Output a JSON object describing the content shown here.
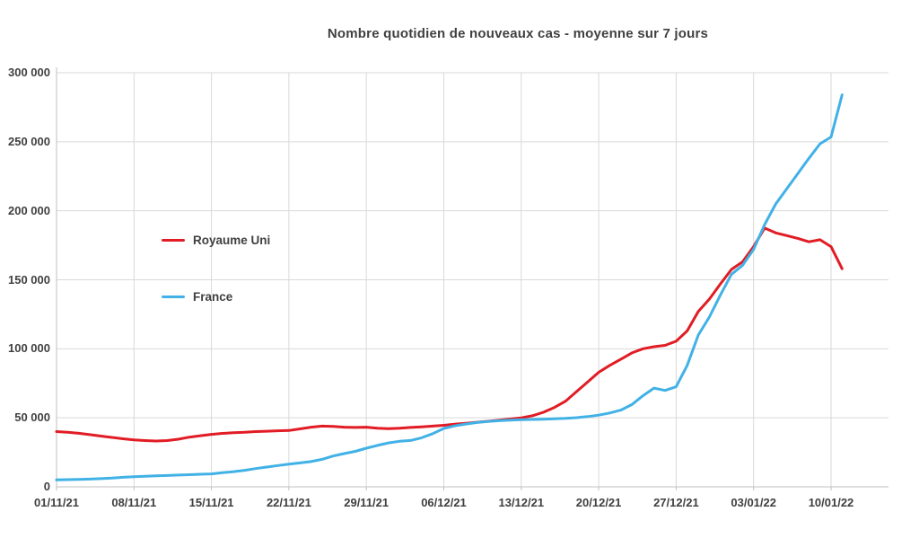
{
  "chart_data": {
    "type": "line",
    "title": "Nombre quotidien de nouveaux cas - moyenne sur 7 jours",
    "xlabel": "",
    "ylabel": "",
    "ylim": [
      0,
      300000
    ],
    "grid": true,
    "legend_position": "inside-left",
    "colors": {
      "grid": "#d9d9d9",
      "axis": "#bfbfbf",
      "text": "#404040",
      "background": "#ffffff"
    },
    "xtick_labels": [
      "01/11/21",
      "08/11/21",
      "15/11/21",
      "22/11/21",
      "29/11/21",
      "06/12/21",
      "13/12/21",
      "20/12/21",
      "27/12/21",
      "03/01/22",
      "10/01/22"
    ],
    "ytick_labels": [
      "0",
      "50 000",
      "100 000",
      "150 000",
      "200 000",
      "250 000",
      "300 000"
    ],
    "ytick_values": [
      0,
      50000,
      100000,
      150000,
      200000,
      250000,
      300000
    ],
    "x_dates": [
      "01/11/21",
      "02/11/21",
      "03/11/21",
      "04/11/21",
      "05/11/21",
      "06/11/21",
      "07/11/21",
      "08/11/21",
      "09/11/21",
      "10/11/21",
      "11/11/21",
      "12/11/21",
      "13/11/21",
      "14/11/21",
      "15/11/21",
      "16/11/21",
      "17/11/21",
      "18/11/21",
      "19/11/21",
      "20/11/21",
      "21/11/21",
      "22/11/21",
      "23/11/21",
      "24/11/21",
      "25/11/21",
      "26/11/21",
      "27/11/21",
      "28/11/21",
      "29/11/21",
      "30/11/21",
      "01/12/21",
      "02/12/21",
      "03/12/21",
      "04/12/21",
      "05/12/21",
      "06/12/21",
      "07/12/21",
      "08/12/21",
      "09/12/21",
      "10/12/21",
      "11/12/21",
      "12/12/21",
      "13/12/21",
      "14/12/21",
      "15/12/21",
      "16/12/21",
      "17/12/21",
      "18/12/21",
      "19/12/21",
      "20/12/21",
      "21/12/21",
      "22/12/21",
      "23/12/21",
      "24/12/21",
      "25/12/21",
      "26/12/21",
      "27/12/21",
      "28/12/21",
      "29/12/21",
      "30/12/21",
      "31/12/21",
      "01/01/22",
      "02/01/22",
      "03/01/22",
      "04/01/22",
      "05/01/22",
      "06/01/22",
      "07/01/22",
      "08/01/22",
      "09/01/22",
      "10/01/22",
      "11/01/22"
    ],
    "series": [
      {
        "name": "Royaume Uni",
        "color": "#e11c24",
        "values": [
          40000,
          39500,
          38800,
          37800,
          36800,
          35800,
          34800,
          34000,
          33500,
          33200,
          33500,
          34500,
          36000,
          37000,
          38000,
          38700,
          39200,
          39500,
          40000,
          40300,
          40600,
          40800,
          42000,
          43200,
          44000,
          43700,
          43200,
          43000,
          43200,
          42500,
          42200,
          42500,
          43000,
          43500,
          44000,
          44600,
          45400,
          46100,
          46800,
          47500,
          48300,
          49100,
          50000,
          51500,
          54000,
          57500,
          62000,
          69000,
          76000,
          83000,
          88000,
          92500,
          97000,
          100000,
          101500,
          102500,
          105500,
          113000,
          127000,
          136000,
          147000,
          157500,
          163000,
          174000,
          187500,
          184000,
          182000,
          180000,
          177500,
          179000,
          174000,
          158000
        ]
      },
      {
        "name": "France",
        "color": "#41b1e6",
        "values": [
          5000,
          5200,
          5400,
          5600,
          5900,
          6300,
          6900,
          7300,
          7700,
          8000,
          8200,
          8500,
          8800,
          9100,
          9400,
          10200,
          11000,
          12000,
          13200,
          14300,
          15400,
          16400,
          17300,
          18300,
          19900,
          22300,
          24100,
          25700,
          28000,
          30000,
          31800,
          33000,
          33600,
          35500,
          38500,
          42300,
          44200,
          45500,
          46600,
          47400,
          47900,
          48300,
          48600,
          48800,
          49000,
          49300,
          49600,
          50100,
          50900,
          51900,
          53500,
          55600,
          59600,
          66000,
          71500,
          69800,
          72500,
          88000,
          110000,
          123000,
          139000,
          154000,
          160500,
          172000,
          190000,
          205000,
          216000,
          227000,
          238000,
          248500,
          253500,
          284000
        ]
      }
    ]
  }
}
